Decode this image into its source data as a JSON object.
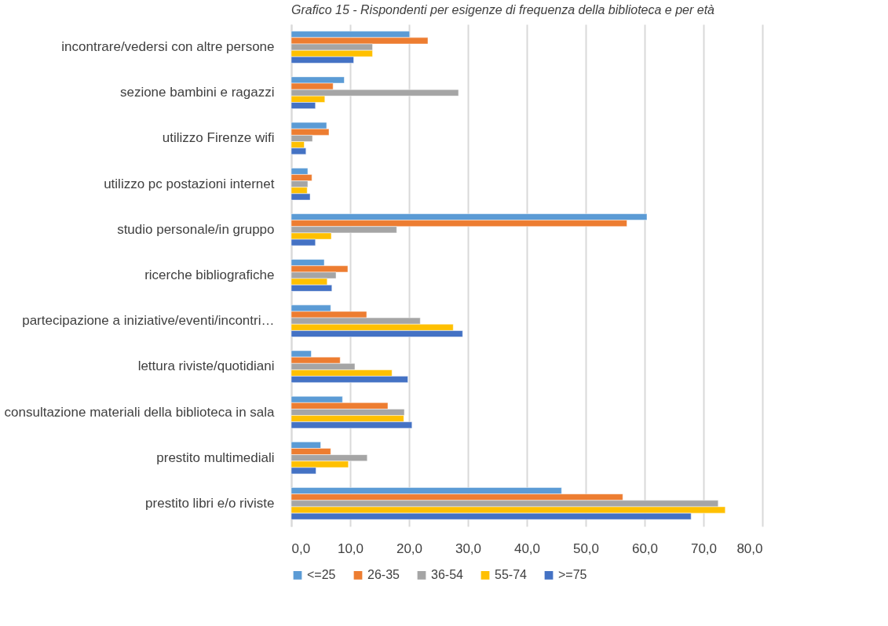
{
  "chart_data": {
    "type": "bar",
    "orientation": "horizontal",
    "title": "Grafico 15 - Rispondenti per esigenze di frequenza della biblioteca e per età",
    "categories": [
      "incontrare/vedersi con altre persone",
      "sezione bambini e ragazzi",
      "utilizzo Firenze wifi",
      "utilizzo pc postazioni internet",
      "studio personale/in gruppo",
      "ricerche bibliografiche",
      "partecipazione a iniziative/eventi/incontri…",
      "lettura riviste/quotidiani",
      "consultazione materiali della biblioteca in sala",
      "prestito multimediali",
      "prestito libri e/o riviste"
    ],
    "series": [
      {
        "name": "<=25",
        "color": "#5b9bd5",
        "values": [
          20.1,
          9.0,
          6.0,
          2.8,
          60.4,
          5.6,
          6.7,
          3.4,
          8.7,
          5.0,
          45.9
        ]
      },
      {
        "name": "26-35",
        "color": "#ed7d31",
        "values": [
          23.2,
          7.1,
          6.4,
          3.5,
          57.0,
          9.6,
          12.8,
          8.3,
          16.4,
          6.7,
          56.3
        ]
      },
      {
        "name": "36-54",
        "color": "#a5a5a5",
        "values": [
          13.8,
          28.4,
          3.6,
          2.8,
          17.9,
          7.6,
          21.9,
          10.8,
          19.2,
          12.9,
          72.5
        ]
      },
      {
        "name": "55-74",
        "color": "#ffc000",
        "values": [
          13.8,
          5.7,
          2.2,
          2.7,
          6.8,
          6.1,
          27.5,
          17.1,
          19.1,
          9.7,
          73.7
        ]
      },
      {
        "name": ">=75",
        "color": "#4472c4",
        "values": [
          10.6,
          4.1,
          2.5,
          3.2,
          4.1,
          6.9,
          29.1,
          19.8,
          20.5,
          4.2,
          67.9
        ]
      }
    ],
    "xlim": [
      0,
      80
    ],
    "xticks": [
      {
        "value": 0,
        "label": "0,0"
      },
      {
        "value": 10,
        "label": "10,0"
      },
      {
        "value": 20,
        "label": "20,0"
      },
      {
        "value": 30,
        "label": "30,0"
      },
      {
        "value": 40,
        "label": "40,0"
      },
      {
        "value": 50,
        "label": "50,0"
      },
      {
        "value": 60,
        "label": "60,0"
      },
      {
        "value": 70,
        "label": "70,0"
      },
      {
        "value": 80,
        "label": "80,0"
      }
    ],
    "grid": "x",
    "legend": "bottom"
  }
}
